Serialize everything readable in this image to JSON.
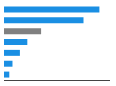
{
  "chart_data": {
    "type": "bar",
    "orientation": "horizontal",
    "categories": [
      null,
      null,
      null,
      null,
      null,
      null,
      null
    ],
    "values": [
      90,
      75,
      35,
      22,
      15,
      8,
      5
    ],
    "colors": [
      "#1a8fe3",
      "#1a8fe3",
      "#808080",
      "#1a8fe3",
      "#1a8fe3",
      "#1a8fe3",
      "#1a8fe3"
    ],
    "xlim": [
      0,
      100
    ],
    "grid": false,
    "tick_labels": false
  }
}
